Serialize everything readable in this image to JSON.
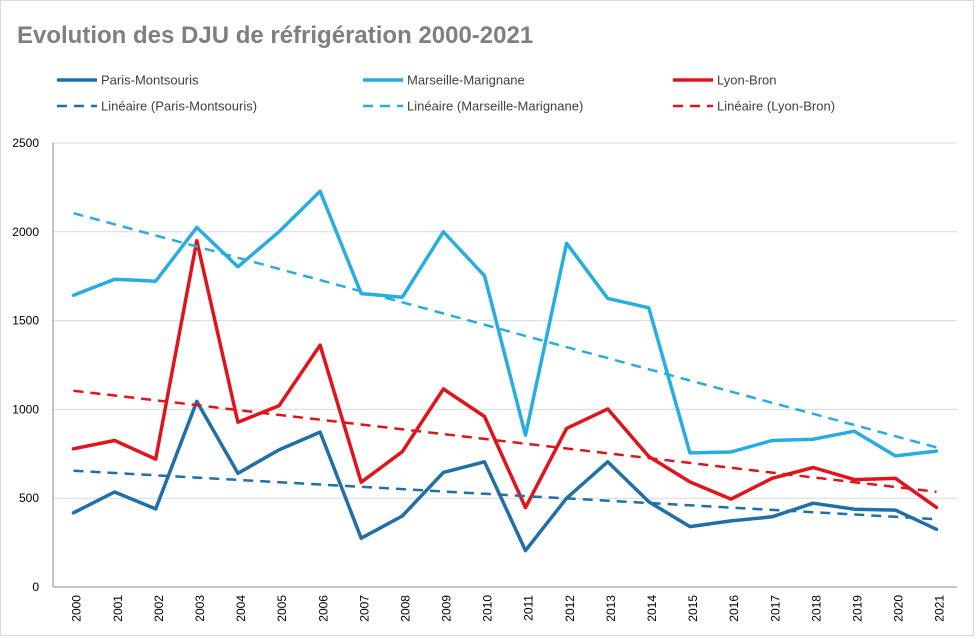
{
  "chart_data": {
    "type": "line",
    "title": "Evolution des DJU de réfrigération 2000-2021",
    "xlabel": "",
    "ylabel": "",
    "ylim": [
      0,
      2500
    ],
    "yticks": [
      0,
      500,
      1000,
      1500,
      2000,
      2500
    ],
    "grid": true,
    "legend_position": "top",
    "categories": [
      "2000",
      "2001",
      "2002",
      "2003",
      "2004",
      "2005",
      "2006",
      "2007",
      "2008",
      "2009",
      "2010",
      "2011",
      "2012",
      "2013",
      "2014",
      "2015",
      "2016",
      "2017",
      "2018",
      "2019",
      "2020",
      "2021"
    ],
    "series": [
      {
        "name": "Paris-Montsouris",
        "color": "#1f6fa8",
        "style": "solid",
        "values": [
          418,
          535,
          440,
          1045,
          640,
          772,
          872,
          275,
          400,
          645,
          705,
          205,
          500,
          705,
          480,
          340,
          372,
          395,
          472,
          438,
          433,
          325
        ]
      },
      {
        "name": "Marseille-Marignane",
        "color": "#27aee0",
        "style": "solid",
        "values": [
          1643,
          1733,
          1722,
          2025,
          1803,
          2000,
          2228,
          1652,
          1632,
          2000,
          1752,
          855,
          1935,
          1625,
          1572,
          755,
          760,
          825,
          832,
          877,
          738,
          765
        ]
      },
      {
        "name": "Lyon-Bron",
        "color": "#e2141b",
        "style": "solid",
        "values": [
          778,
          825,
          720,
          1950,
          928,
          1020,
          1362,
          590,
          762,
          1115,
          960,
          447,
          893,
          1003,
          735,
          592,
          495,
          612,
          673,
          605,
          612,
          448
        ]
      },
      {
        "name": "Linéaire (Paris-Montsouris)",
        "color": "#1f6fa8",
        "style": "dashed",
        "values": [
          655,
          642,
          629,
          616,
          603,
          590,
          577,
          564,
          551,
          538,
          525,
          512,
          499,
          486,
          473,
          460,
          447,
          434,
          421,
          408,
          395,
          382
        ]
      },
      {
        "name": "Linéaire (Marseille-Marignane)",
        "color": "#27aee0",
        "style": "dashed",
        "values": [
          2105,
          2042,
          1979,
          1917,
          1854,
          1791,
          1728,
          1665,
          1603,
          1540,
          1477,
          1414,
          1351,
          1289,
          1226,
          1163,
          1100,
          1037,
          975,
          912,
          849,
          786
        ]
      },
      {
        "name": "Linéaire (Lyon-Bron)",
        "color": "#e2141b",
        "style": "dashed",
        "values": [
          1105,
          1078,
          1051,
          1024,
          996,
          969,
          942,
          915,
          888,
          861,
          834,
          807,
          780,
          753,
          726,
          699,
          671,
          644,
          617,
          590,
          563,
          536
        ]
      }
    ]
  }
}
